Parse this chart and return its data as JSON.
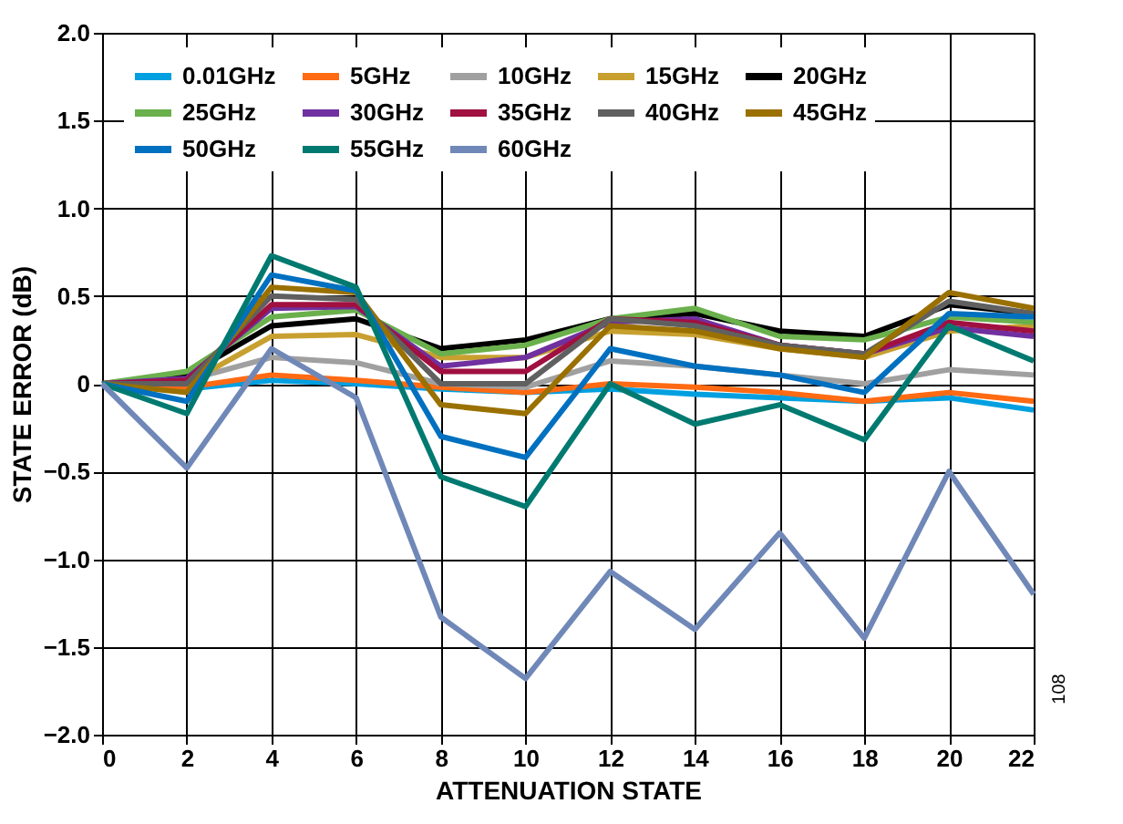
{
  "chart_data": {
    "type": "line",
    "xlabel": "ATTENUATION STATE",
    "ylabel": "STATE ERROR (dB)",
    "x": [
      0,
      2,
      4,
      6,
      8,
      10,
      12,
      14,
      16,
      18,
      20,
      22
    ],
    "xlim": [
      0,
      22
    ],
    "xticks": [
      0,
      2,
      4,
      6,
      8,
      10,
      12,
      14,
      16,
      18,
      20,
      22
    ],
    "ylim": [
      -2,
      2
    ],
    "yticks": [
      {
        "value": -2,
        "label": "−2.0"
      },
      {
        "value": -1.5,
        "label": "−1.5"
      },
      {
        "value": -1,
        "label": "−1.0"
      },
      {
        "value": -0.5,
        "label": "−0.5"
      },
      {
        "value": 0,
        "label": "0"
      },
      {
        "value": 0.5,
        "label": "0.5"
      },
      {
        "value": 1,
        "label": "1.0"
      },
      {
        "value": 1.5,
        "label": "1.5"
      },
      {
        "value": 2,
        "label": "2.0"
      }
    ],
    "grid": true,
    "legend": "top",
    "marker": "none",
    "line_style": "solid",
    "annotations": [
      "108"
    ],
    "series": [
      {
        "name": "0.01GHz",
        "color": "#00a0e0",
        "values": [
          0,
          -0.03,
          0.02,
          0.0,
          -0.03,
          -0.05,
          -0.03,
          -0.06,
          -0.08,
          -0.1,
          -0.08,
          -0.15
        ]
      },
      {
        "name": "5GHz",
        "color": "#ff6a13",
        "values": [
          0,
          -0.02,
          0.05,
          0.02,
          -0.02,
          -0.05,
          0.0,
          -0.02,
          -0.05,
          -0.1,
          -0.05,
          -0.1
        ]
      },
      {
        "name": "10GHz",
        "color": "#a0a0a0",
        "values": [
          0,
          0.02,
          0.15,
          0.12,
          0.0,
          -0.02,
          0.13,
          0.1,
          0.05,
          0.0,
          0.08,
          0.05
        ]
      },
      {
        "name": "15GHz",
        "color": "#c8a030",
        "values": [
          0,
          0.0,
          0.27,
          0.28,
          0.15,
          0.15,
          0.3,
          0.28,
          0.2,
          0.15,
          0.3,
          0.33
        ]
      },
      {
        "name": "20GHz",
        "color": "#000000",
        "values": [
          0,
          0.05,
          0.33,
          0.37,
          0.2,
          0.25,
          0.37,
          0.4,
          0.3,
          0.27,
          0.45,
          0.4
        ]
      },
      {
        "name": "25GHz",
        "color": "#6ab04c",
        "values": [
          0,
          0.07,
          0.38,
          0.42,
          0.17,
          0.22,
          0.37,
          0.43,
          0.27,
          0.25,
          0.38,
          0.35
        ]
      },
      {
        "name": "30GHz",
        "color": "#7030a0",
        "values": [
          0,
          0.03,
          0.43,
          0.44,
          0.1,
          0.15,
          0.35,
          0.37,
          0.22,
          0.17,
          0.32,
          0.27
        ]
      },
      {
        "name": "35GHz",
        "color": "#a01040",
        "values": [
          0,
          0.02,
          0.45,
          0.45,
          0.07,
          0.07,
          0.37,
          0.35,
          0.22,
          0.17,
          0.35,
          0.3
        ]
      },
      {
        "name": "40GHz",
        "color": "#606060",
        "values": [
          0,
          0.0,
          0.5,
          0.48,
          0.0,
          0.0,
          0.37,
          0.33,
          0.22,
          0.17,
          0.47,
          0.4
        ]
      },
      {
        "name": "45GHz",
        "color": "#9a7000",
        "values": [
          0,
          -0.05,
          0.55,
          0.52,
          -0.12,
          -0.17,
          0.33,
          0.3,
          0.2,
          0.15,
          0.52,
          0.43
        ]
      },
      {
        "name": "50GHz",
        "color": "#0070c0",
        "values": [
          0,
          -0.1,
          0.62,
          0.53,
          -0.3,
          -0.42,
          0.2,
          0.1,
          0.05,
          -0.05,
          0.4,
          0.38
        ]
      },
      {
        "name": "55GHz",
        "color": "#007a70",
        "values": [
          0,
          -0.17,
          0.73,
          0.55,
          -0.53,
          -0.7,
          0.0,
          -0.23,
          -0.12,
          -0.32,
          0.33,
          0.13
        ]
      },
      {
        "name": "60GHz",
        "color": "#7088b8",
        "values": [
          0,
          -0.48,
          0.2,
          -0.08,
          -1.33,
          -1.68,
          -1.07,
          -1.4,
          -0.85,
          -1.45,
          -0.5,
          -1.2
        ]
      }
    ]
  }
}
